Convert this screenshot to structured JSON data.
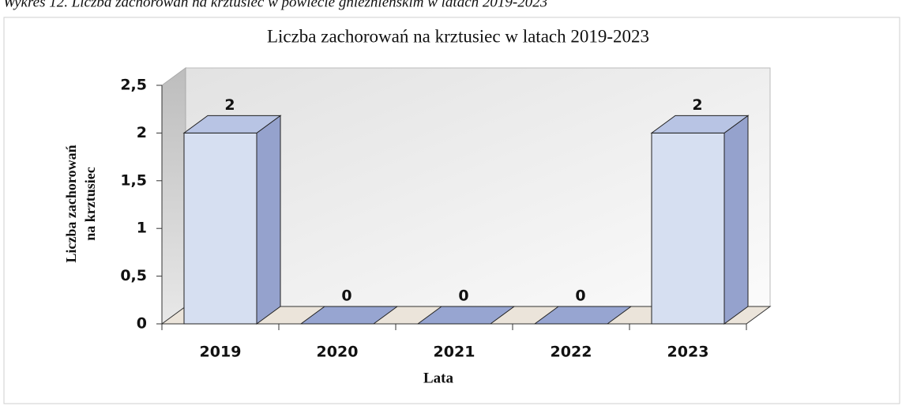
{
  "caption": "Wykres 12. Liczba zachorowań na krztusiec w powiecie gnieźnieńskim w latach 2019-2023",
  "chart_data": {
    "type": "bar3d",
    "title": "Liczba zachorowań na krztusiec w latach 2019-2023",
    "xlabel": "Lata",
    "ylabel": [
      "Liczba zachorowań",
      "na krztusiec"
    ],
    "categories": [
      "2019",
      "2020",
      "2021",
      "2022",
      "2023"
    ],
    "values": [
      2,
      0,
      0,
      0,
      2
    ],
    "color": "#d6dff1",
    "ylim": [
      0,
      2.5
    ],
    "yticks": [
      0,
      {
        "value": 0.5,
        "label": "0,5"
      },
      1,
      {
        "value": 1.5,
        "label": "1,5"
      },
      2,
      {
        "value": 2.5,
        "label": "2,5"
      }
    ],
    "grid": false
  }
}
